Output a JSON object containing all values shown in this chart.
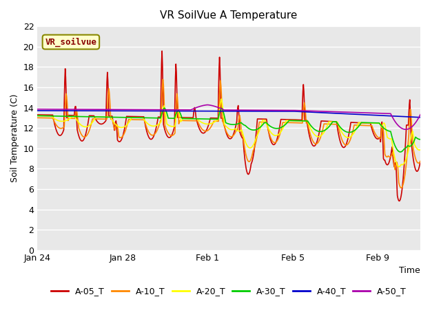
{
  "title": "VR SoilVue A Temperature",
  "xlabel": "Time",
  "ylabel": "Soil Temperature (C)",
  "ylim": [
    0,
    22
  ],
  "yticks": [
    0,
    2,
    4,
    6,
    8,
    10,
    12,
    14,
    16,
    18,
    20,
    22
  ],
  "bg_color": "#e8e8e8",
  "series": [
    {
      "label": "A-05_T",
      "color": "#cc0000"
    },
    {
      "label": "A-10_T",
      "color": "#ff8800"
    },
    {
      "label": "A-20_T",
      "color": "#ffff00"
    },
    {
      "label": "A-30_T",
      "color": "#00cc00"
    },
    {
      "label": "A-40_T",
      "color": "#0000cc"
    },
    {
      "label": "A-50_T",
      "color": "#aa00aa"
    }
  ],
  "tick_positions": [
    0,
    4,
    8,
    12,
    16
  ],
  "tick_labels": [
    "Jan 24",
    "Jan 28",
    "Feb 1",
    "Feb 5",
    "Feb 9"
  ],
  "annotation_text": "VR_soilvue",
  "annotation_bg": "#ffffcc",
  "annotation_border": "#888800"
}
